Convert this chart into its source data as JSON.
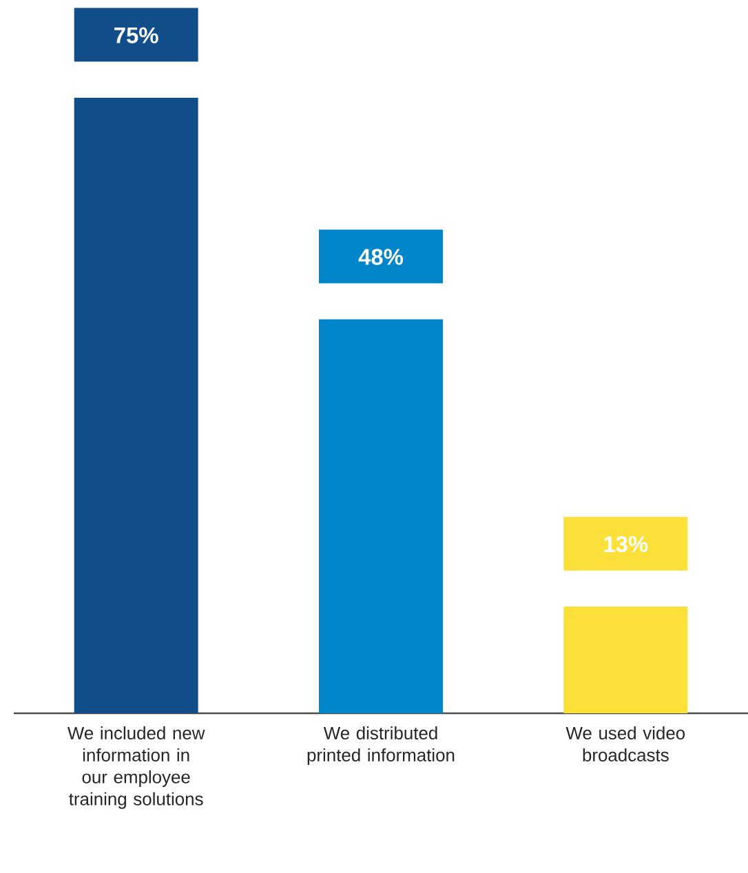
{
  "chart_data": {
    "type": "bar",
    "categories": [
      "We included new information in our employee training solutions",
      "We distributed printed information",
      "We used video broadcasts"
    ],
    "values": [
      75,
      48,
      13
    ],
    "value_labels": [
      "75%",
      "48%",
      "13%"
    ],
    "colors": [
      "#124e89",
      "#0286cb",
      "#fbe03a"
    ]
  }
}
